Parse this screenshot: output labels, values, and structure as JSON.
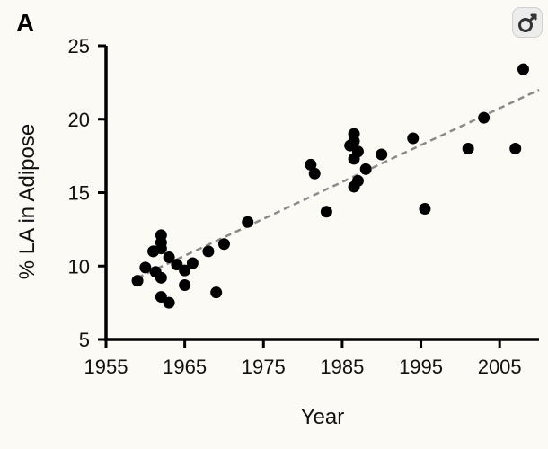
{
  "panel_label": "A",
  "corner_badge_icon": "female-symbol-icon",
  "colors": {
    "background": "#fbfaf5",
    "points": "#000000",
    "trendline": "#8a8a8a",
    "badge": "#ececec"
  },
  "chart_data": {
    "type": "scatter",
    "title": "",
    "xlabel": "Year",
    "ylabel": "% LA in Adipose",
    "xlim": [
      1955,
      2010
    ],
    "ylim": [
      5,
      25
    ],
    "x_ticks": [
      1955,
      1965,
      1975,
      1985,
      1995,
      2005
    ],
    "y_ticks": [
      5,
      10,
      15,
      20,
      25
    ],
    "x_tick_labels": [
      "1955",
      "1965",
      "1975",
      "1985",
      "1995",
      "2005"
    ],
    "y_tick_labels": [
      "5",
      "10",
      "15",
      "20",
      "25"
    ],
    "grid": false,
    "legend": "none",
    "series": [
      {
        "points": [
          {
            "x": 1959,
            "y": 9.0
          },
          {
            "x": 1960,
            "y": 9.9
          },
          {
            "x": 1961,
            "y": 11.0
          },
          {
            "x": 1961.3,
            "y": 9.6
          },
          {
            "x": 1962,
            "y": 12.1
          },
          {
            "x": 1962,
            "y": 11.6
          },
          {
            "x": 1962,
            "y": 11.2
          },
          {
            "x": 1962,
            "y": 9.2
          },
          {
            "x": 1962,
            "y": 7.9
          },
          {
            "x": 1963,
            "y": 10.6
          },
          {
            "x": 1963,
            "y": 7.5
          },
          {
            "x": 1964,
            "y": 10.1
          },
          {
            "x": 1965,
            "y": 9.7
          },
          {
            "x": 1965,
            "y": 8.7
          },
          {
            "x": 1966,
            "y": 10.2
          },
          {
            "x": 1968,
            "y": 11.0
          },
          {
            "x": 1969,
            "y": 8.2
          },
          {
            "x": 1970,
            "y": 11.5
          },
          {
            "x": 1973,
            "y": 13.0
          },
          {
            "x": 1981,
            "y": 16.9
          },
          {
            "x": 1981.5,
            "y": 16.3
          },
          {
            "x": 1983,
            "y": 13.7
          },
          {
            "x": 1986,
            "y": 18.2
          },
          {
            "x": 1986.5,
            "y": 19.0
          },
          {
            "x": 1986.5,
            "y": 18.5
          },
          {
            "x": 1986.5,
            "y": 17.3
          },
          {
            "x": 1986.5,
            "y": 15.4
          },
          {
            "x": 1987,
            "y": 17.8
          },
          {
            "x": 1987,
            "y": 15.8
          },
          {
            "x": 1988,
            "y": 16.6
          },
          {
            "x": 1990,
            "y": 17.6
          },
          {
            "x": 1994,
            "y": 18.7
          },
          {
            "x": 1995.5,
            "y": 13.9
          },
          {
            "x": 2001,
            "y": 18.0
          },
          {
            "x": 2003,
            "y": 20.1
          },
          {
            "x": 2007,
            "y": 18.0
          },
          {
            "x": 2008,
            "y": 23.4
          }
        ]
      }
    ],
    "trendline": {
      "style": "dashed",
      "x": [
        1959,
        2010
      ],
      "y": [
        9.2,
        22.0
      ]
    }
  }
}
